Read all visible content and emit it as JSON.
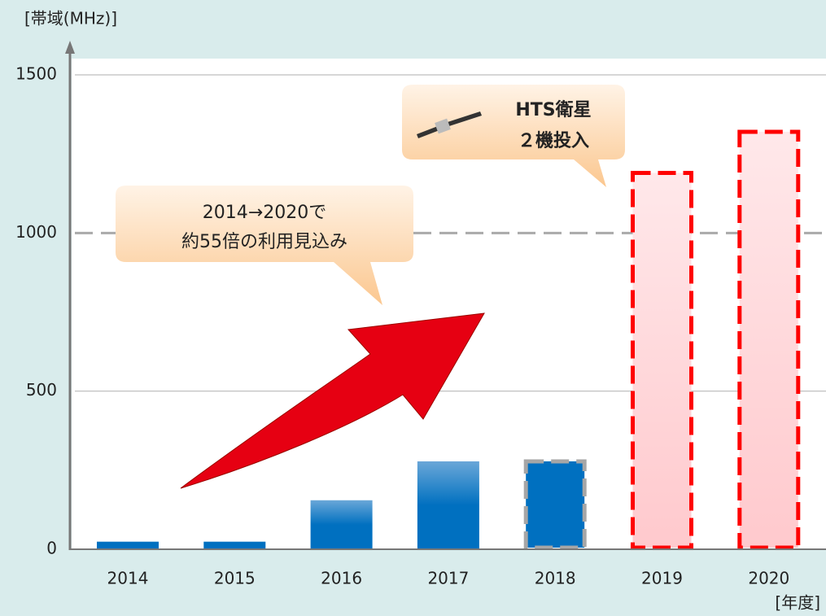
{
  "chart_data": {
    "type": "bar",
    "y_axis_label": "[帯域(MHz)]",
    "x_axis_label": "[年度]",
    "categories": [
      "2014",
      "2015",
      "2016",
      "2017",
      "2018",
      "2019",
      "2020"
    ],
    "values": [
      24,
      24,
      155,
      278,
      278,
      1190,
      1320
    ],
    "colors": [
      "#0070c0",
      "#0070c0",
      "#0070c0",
      "#0070c0",
      "#0070c0",
      "#ffd3d6",
      "#ffd3d6"
    ],
    "outline_colors": [
      null,
      null,
      null,
      null,
      "#a6a6a6",
      "#ff0000",
      "#ff0000"
    ],
    "ylim": [
      0,
      1500
    ],
    "yticks": [
      0,
      500,
      1000,
      1500
    ],
    "grid": true,
    "ref_line": 1000,
    "annotations": [
      {
        "lines": [
          "2014→2020で",
          "約55倍の利用見込み"
        ]
      },
      {
        "lines": [
          "HTS衛星",
          "２機投入"
        ]
      }
    ]
  }
}
